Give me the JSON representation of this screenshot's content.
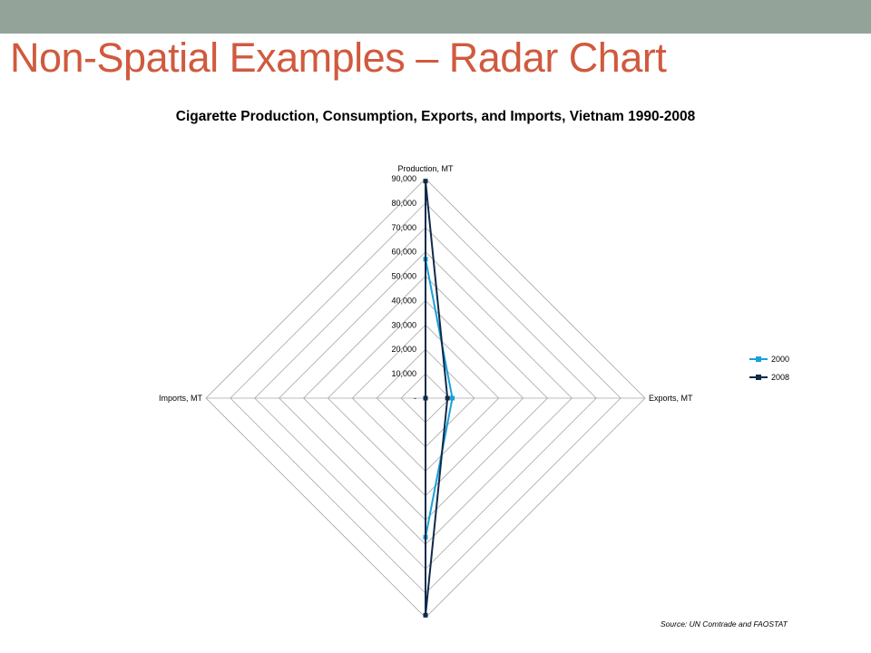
{
  "slide": {
    "title": "Non-Spatial Examples – Radar Chart",
    "source": "Source: UN Comtrade and FAOSTAT",
    "bar_color": "#94a39a",
    "title_color": "#d05a3e"
  },
  "chart_data": {
    "type": "radar",
    "title": "Cigarette Production, Consumption, Exports, and Imports, Vietnam 1990-2008",
    "axes": [
      "Production, MT",
      "Exports, MT",
      "",
      "Imports, MT"
    ],
    "tick_labels": [
      "-",
      "10,000",
      "20,000",
      "30,000",
      "40,000",
      "50,000",
      "60,000",
      "70,000",
      "80,000",
      "90,000"
    ],
    "rmax": 90000,
    "tick_step": 10000,
    "grid": true,
    "legend_position": "right",
    "series": [
      {
        "name": "2000",
        "color": "#1aa0d8",
        "values": [
          57000,
          11000,
          57000,
          0
        ]
      },
      {
        "name": "2008",
        "color": "#0f2a4a",
        "values": [
          89000,
          9000,
          89000,
          0
        ]
      }
    ]
  }
}
